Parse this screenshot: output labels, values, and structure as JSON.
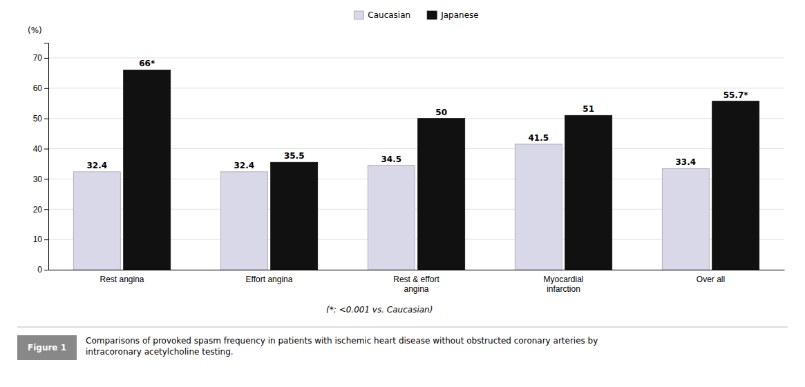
{
  "chart_data": {
    "type": "bar",
    "categories": [
      "Rest angina",
      "Effort angina",
      "Rest & effort\nangina",
      "Myocardial\ninfarction",
      "Over all"
    ],
    "series": [
      {
        "name": "Caucasian",
        "color": "#d8d8e8",
        "values": [
          32.4,
          32.4,
          34.5,
          41.5,
          33.4
        ]
      },
      {
        "name": "Japanese",
        "color": "#111111",
        "values": [
          66,
          35.5,
          50,
          51,
          55.7
        ],
        "value_labels": [
          "66*",
          "35.5",
          "50",
          "51",
          "55.7*"
        ]
      }
    ],
    "ylabel": "(%)",
    "ylim": [
      0,
      75
    ],
    "yticks": [
      0,
      10,
      20,
      30,
      40,
      50,
      60,
      70
    ],
    "grid": true,
    "legend": "top",
    "data_labels": true,
    "footnote": "(*: <0.001 vs. Caucasian)",
    "figure_label": "Figure 1",
    "caption": "Comparisons of provoked spasm frequency in patients with ischemic heart disease without obstructed coronary arteries by\nintracoronary acetylcholine testing."
  }
}
